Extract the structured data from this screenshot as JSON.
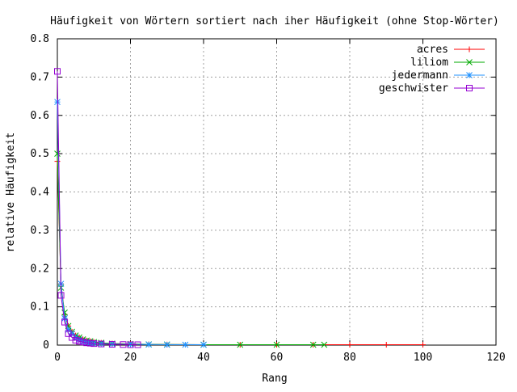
{
  "chart_data": {
    "type": "line",
    "title": "Häufigkeit von Wörtern sortiert nach iher Häufigkeit (ohne Stop-Wörter)",
    "xlabel": "Rang",
    "ylabel": "relative Häufigkeit",
    "xlim": [
      0,
      120
    ],
    "ylim": [
      0,
      0.8
    ],
    "xticks": [
      0,
      20,
      40,
      60,
      80,
      100,
      120
    ],
    "yticks": [
      0,
      0.1,
      0.2,
      0.3,
      0.4,
      0.5,
      0.6,
      0.7,
      0.8
    ],
    "grid": true,
    "legend_position": "top-right",
    "series": [
      {
        "name": "acres",
        "color": "#ff0000",
        "marker": "plus",
        "x": [
          0,
          1,
          2,
          3,
          4,
          5,
          6,
          7,
          8,
          9,
          10,
          12,
          15,
          20,
          25,
          30,
          40,
          50,
          60,
          70,
          80,
          90,
          100
        ],
        "y": [
          0.48,
          0.16,
          0.08,
          0.05,
          0.035,
          0.025,
          0.02,
          0.015,
          0.012,
          0.01,
          0.008,
          0.006,
          0.004,
          0.003,
          0.002,
          0.0015,
          0.001,
          0.001,
          0.001,
          0.001,
          0.001,
          0.001,
          0.001
        ]
      },
      {
        "name": "liliom",
        "color": "#00aa00",
        "marker": "x",
        "x": [
          0,
          1,
          2,
          3,
          4,
          5,
          6,
          7,
          8,
          9,
          10,
          12,
          15,
          20,
          25,
          30,
          40,
          50,
          60,
          70,
          73
        ],
        "y": [
          0.5,
          0.15,
          0.085,
          0.05,
          0.035,
          0.025,
          0.02,
          0.015,
          0.012,
          0.01,
          0.008,
          0.006,
          0.004,
          0.003,
          0.002,
          0.0015,
          0.001,
          0.001,
          0.001,
          0.001,
          0.001
        ]
      },
      {
        "name": "jedermann",
        "color": "#1e90ff",
        "marker": "star",
        "x": [
          0,
          1,
          2,
          3,
          4,
          5,
          6,
          7,
          8,
          9,
          10,
          12,
          15,
          20,
          25,
          30,
          35,
          40
        ],
        "y": [
          0.635,
          0.16,
          0.07,
          0.04,
          0.03,
          0.02,
          0.015,
          0.01,
          0.008,
          0.006,
          0.005,
          0.004,
          0.003,
          0.002,
          0.0015,
          0.001,
          0.001,
          0.001
        ]
      },
      {
        "name": "geschwister",
        "color": "#9400d3",
        "marker": "square",
        "x": [
          0,
          1,
          2,
          3,
          4,
          5,
          6,
          7,
          8,
          9,
          10,
          12,
          15,
          18,
          20,
          22
        ],
        "y": [
          0.715,
          0.13,
          0.06,
          0.03,
          0.02,
          0.013,
          0.01,
          0.008,
          0.006,
          0.005,
          0.004,
          0.003,
          0.002,
          0.0015,
          0.001,
          0.001
        ]
      }
    ]
  }
}
